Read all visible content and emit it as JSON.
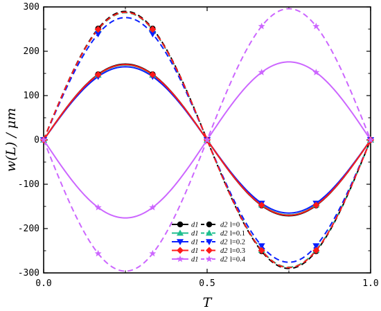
{
  "chart_data": {
    "type": "line",
    "xlabel": "T",
    "ylabel": "w(L) / μm",
    "xlim": [
      0,
      1
    ],
    "ylim": [
      -300,
      300
    ],
    "x_ticks": [
      "0.0",
      "0.5",
      "1.0"
    ],
    "y_ticks": [
      "300",
      "200",
      "100",
      "0",
      "-100",
      "-200",
      "-300"
    ],
    "grid": false,
    "legend_position": "bottom-center",
    "x": [
      0,
      0.1667,
      0.25,
      0.3333,
      0.5,
      0.6667,
      0.75,
      0.8333,
      1.0
    ],
    "series": [
      {
        "name": "d1 l=0",
        "d": "d1",
        "l": "l=0",
        "style": "solid",
        "color": "#000000",
        "marker": "circle",
        "amplitude": 171,
        "values": [
          0,
          148,
          171,
          148,
          0,
          -148,
          -171,
          -148,
          0
        ]
      },
      {
        "name": "d2 l=0",
        "d": "d2",
        "l": "l=0",
        "style": "dashed",
        "color": "#000000",
        "marker": "circle",
        "amplitude": 290,
        "values": [
          0,
          251,
          290,
          251,
          0,
          -251,
          -290,
          -251,
          0
        ]
      },
      {
        "name": "d1 l=0.1",
        "d": "d1",
        "l": "l=0.1",
        "style": "solid",
        "color": "#1fbf8f",
        "marker": "triangle-up",
        "amplitude": 169,
        "values": [
          0,
          146,
          169,
          146,
          0,
          -146,
          -169,
          -146,
          0
        ]
      },
      {
        "name": "d2 l=0.1",
        "d": "d2",
        "l": "l=0.1",
        "style": "dashed",
        "color": "#1fbf8f",
        "marker": "triangle-up",
        "amplitude": 287,
        "values": [
          0,
          249,
          287,
          249,
          0,
          -249,
          -287,
          -249,
          0
        ]
      },
      {
        "name": "d1 l=0.2",
        "d": "d1",
        "l": "l=0.2",
        "style": "solid",
        "color": "#0a1fff",
        "marker": "triangle-down",
        "amplitude": 165,
        "values": [
          0,
          143,
          165,
          143,
          0,
          -143,
          -165,
          -143,
          0
        ]
      },
      {
        "name": "d2 l=0.2",
        "d": "d2",
        "l": "l=0.2",
        "style": "dashed",
        "color": "#0a1fff",
        "marker": "triangle-down",
        "amplitude": 276,
        "values": [
          0,
          239,
          276,
          239,
          0,
          -239,
          -276,
          -239,
          0
        ]
      },
      {
        "name": "d1 l=0.3",
        "d": "d1",
        "l": "l=0.3",
        "style": "solid",
        "color": "#ff1a1a",
        "marker": "diamond",
        "amplitude": 170,
        "values": [
          0,
          147,
          170,
          147,
          0,
          -147,
          -170,
          -147,
          0
        ]
      },
      {
        "name": "d2 l=0.3",
        "d": "d2",
        "l": "l=0.3",
        "style": "dashed",
        "color": "#ff1a1a",
        "marker": "diamond",
        "amplitude": 288,
        "values": [
          0,
          249,
          288,
          249,
          0,
          -249,
          -288,
          -249,
          0
        ]
      },
      {
        "name": "d1 l=0.4",
        "d": "d1",
        "l": "l=0.4",
        "style": "solid",
        "color": "#cc66ff",
        "marker": "star",
        "amplitude": -176,
        "values": [
          0,
          -152,
          -176,
          -152,
          0,
          152,
          176,
          152,
          0
        ]
      },
      {
        "name": "d2 l=0.4",
        "d": "d2",
        "l": "l=0.4",
        "style": "dashed",
        "color": "#cc66ff",
        "marker": "star",
        "amplitude": -296,
        "values": [
          0,
          -256,
          -296,
          -256,
          0,
          256,
          296,
          256,
          0
        ]
      }
    ]
  }
}
